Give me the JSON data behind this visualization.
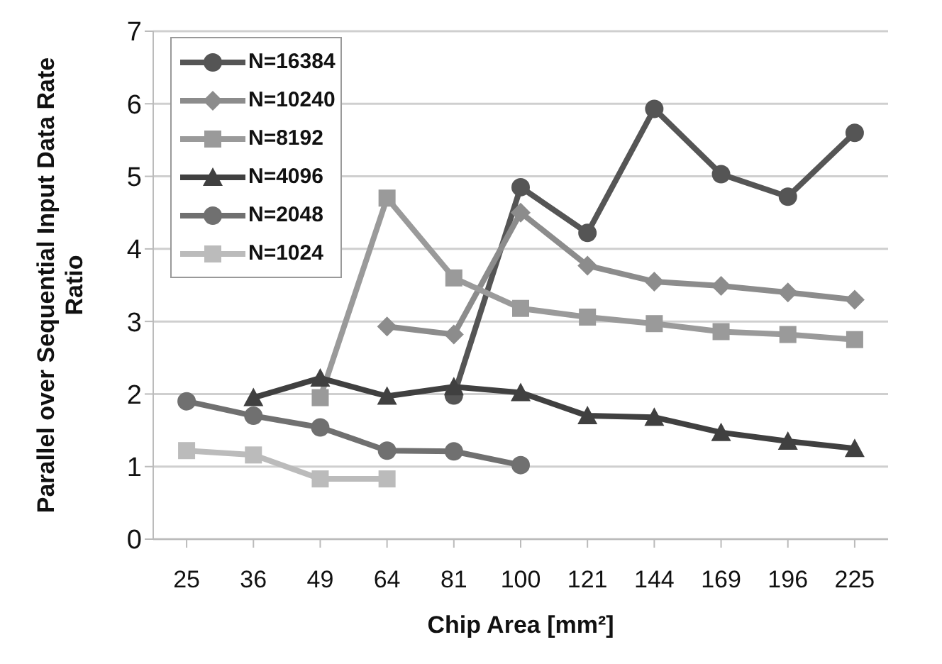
{
  "chart_data": {
    "type": "line",
    "xlabel": "Chip Area [mm²]",
    "ylabel": "Parallel over Sequential Input Data Rate Ratio",
    "categories": [
      "25",
      "36",
      "49",
      "64",
      "81",
      "100",
      "121",
      "144",
      "169",
      "196",
      "225"
    ],
    "ylim": [
      0,
      7
    ],
    "yticks": [
      0,
      1,
      2,
      3,
      4,
      5,
      6,
      7
    ],
    "grid": "y",
    "legend": "top left",
    "line_style": "solid",
    "series": [
      {
        "name": "N=16384",
        "color": "#555555",
        "marker": "circle",
        "values": [
          null,
          null,
          null,
          null,
          1.98,
          4.85,
          4.22,
          5.93,
          5.03,
          4.72,
          5.6
        ]
      },
      {
        "name": "N=10240",
        "color": "#8c8c8c",
        "marker": "diamond",
        "values": [
          null,
          null,
          null,
          2.93,
          2.82,
          4.5,
          3.77,
          3.55,
          3.49,
          3.4,
          3.3
        ]
      },
      {
        "name": "N=8192",
        "color": "#9a9a9a",
        "marker": "square",
        "values": [
          null,
          null,
          1.95,
          4.7,
          3.6,
          3.18,
          3.06,
          2.97,
          2.86,
          2.82,
          2.75
        ]
      },
      {
        "name": "N=4096",
        "color": "#404040",
        "marker": "triangle",
        "values": [
          null,
          1.95,
          2.22,
          1.97,
          2.1,
          2.02,
          1.7,
          1.68,
          1.47,
          1.35,
          1.25
        ]
      },
      {
        "name": "N=2048",
        "color": "#707070",
        "marker": "circle",
        "values": [
          1.9,
          1.7,
          1.54,
          1.22,
          1.21,
          1.02,
          null,
          null,
          null,
          null,
          null
        ]
      },
      {
        "name": "N=1024",
        "color": "#bbbbbb",
        "marker": "square",
        "values": [
          1.22,
          1.16,
          0.83,
          0.83,
          null,
          null,
          null,
          null,
          null,
          null,
          null
        ]
      }
    ]
  }
}
